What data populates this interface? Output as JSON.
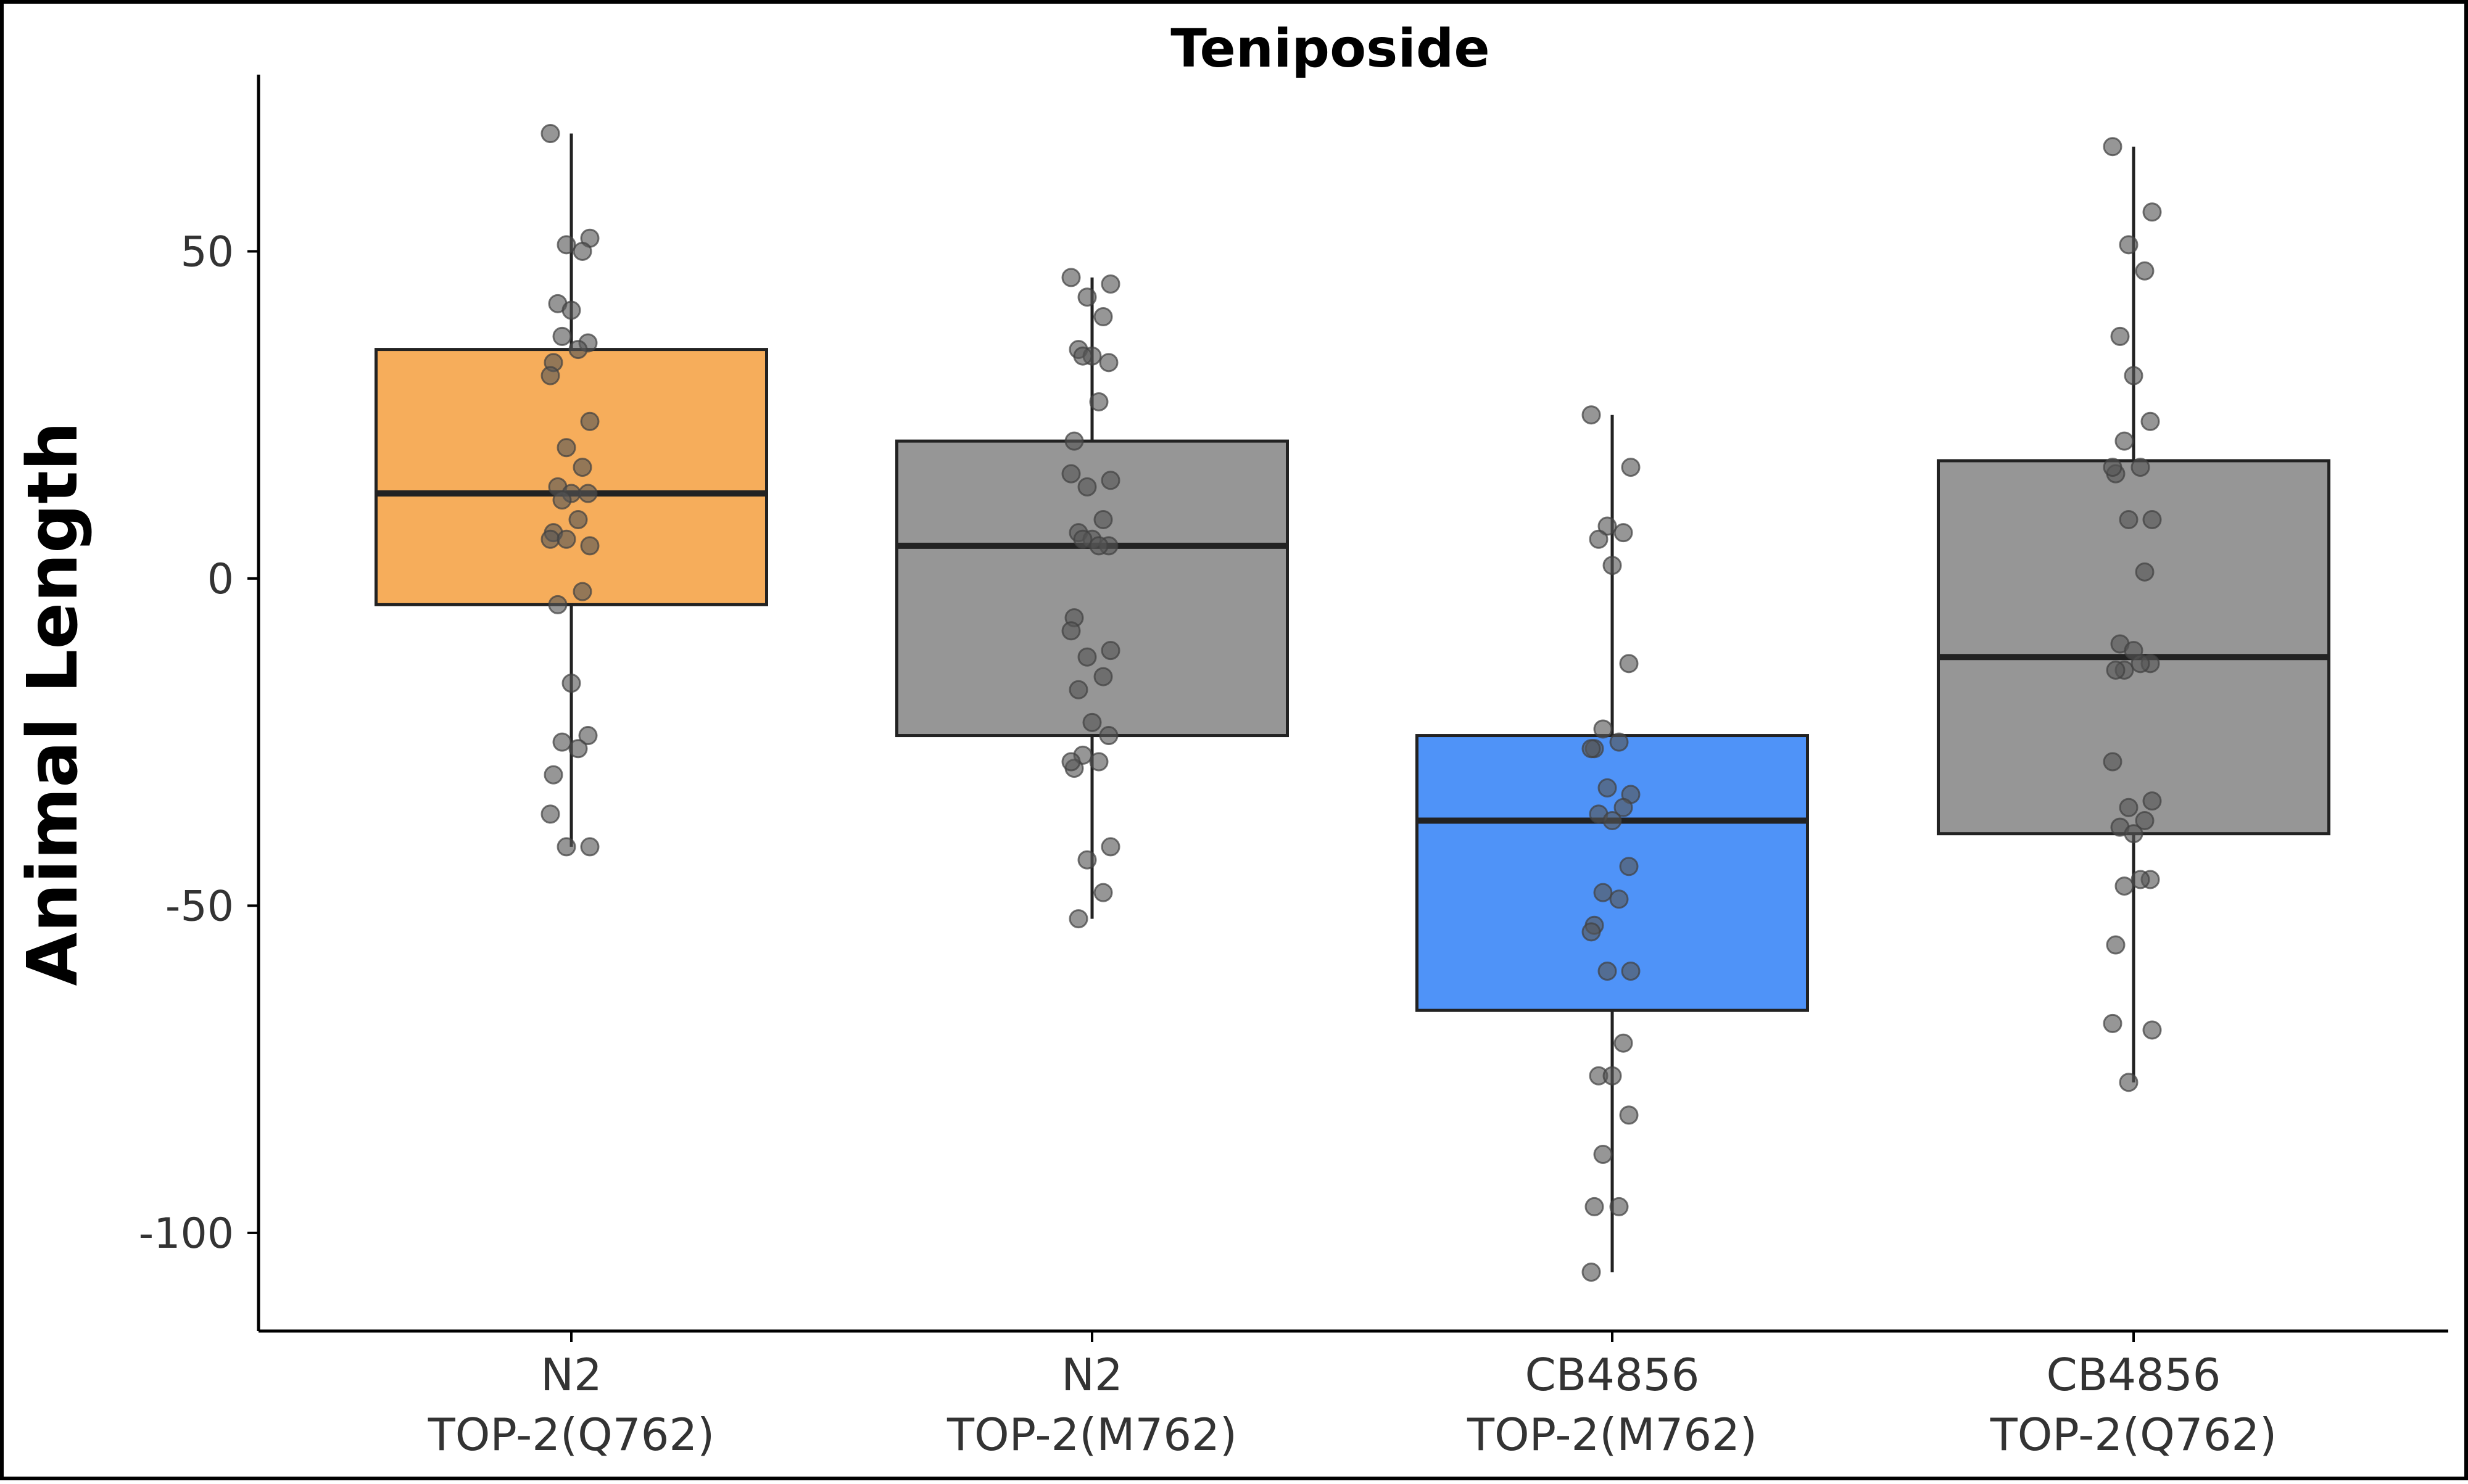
{
  "chart_data": {
    "type": "boxplot",
    "title": "Teniposide",
    "xlabel": "",
    "ylabel": "Animal Length",
    "ylim": [
      -115,
      77
    ],
    "yticks": [
      50,
      0,
      -50,
      -100
    ],
    "grid": false,
    "legend": "none",
    "categories": [
      {
        "line1": "N2",
        "line2": "TOP-2(Q762)"
      },
      {
        "line1": "N2",
        "line2": "TOP-2(M762)"
      },
      {
        "line1": "CB4856",
        "line2": "TOP-2(M762)"
      },
      {
        "line1": "CB4856",
        "line2": "TOP-2(Q762)"
      }
    ],
    "series": [
      {
        "name": "N2 TOP-2(Q762)",
        "color": "#f6ad5b",
        "stats": {
          "min": -41,
          "q1": -4,
          "median": 13,
          "q3": 35,
          "max": 68
        },
        "points": [
          68,
          52,
          51,
          50,
          42,
          41,
          36,
          37,
          35,
          33,
          31,
          24,
          20,
          17,
          14,
          13,
          13,
          12,
          9,
          7,
          6,
          5,
          6,
          -2,
          -4,
          -16,
          -24,
          -25,
          -26,
          -30,
          -36,
          -41,
          -41
        ]
      },
      {
        "name": "N2 TOP-2(M762)",
        "color": "#969696",
        "stats": {
          "min": -52,
          "q1": -24,
          "median": 5,
          "q3": 21,
          "max": 46
        },
        "points": [
          46,
          45,
          43,
          40,
          35,
          34,
          33,
          34,
          27,
          21,
          16,
          15,
          14,
          9,
          7,
          6,
          5,
          6,
          5,
          -6,
          -8,
          -11,
          -12,
          -15,
          -17,
          -22,
          -24,
          -27,
          -28,
          -29,
          -28,
          -41,
          -43,
          -48,
          -52
        ]
      },
      {
        "name": "CB4856 TOP-2(M762)",
        "color": "#4f93f8",
        "stats": {
          "min": -106,
          "q1": -66,
          "median": -37,
          "q3": -24,
          "max": 25
        },
        "points": [
          25,
          17,
          8,
          7,
          6,
          2,
          -13,
          -23,
          -25,
          -26,
          -26,
          -33,
          -32,
          -35,
          -36,
          -37,
          -44,
          -48,
          -49,
          -53,
          -54,
          -60,
          -60,
          -71,
          -76,
          -76,
          -82,
          -88,
          -96,
          -96,
          -106
        ]
      },
      {
        "name": "CB4856 TOP-2(Q762)",
        "color": "#969696",
        "stats": {
          "min": -77,
          "q1": -39,
          "median": -12,
          "q3": 18,
          "max": 66
        },
        "points": [
          66,
          56,
          51,
          47,
          37,
          31,
          24,
          21,
          17,
          16,
          17,
          9,
          9,
          1,
          -10,
          -11,
          -13,
          -14,
          -13,
          -14,
          -28,
          -34,
          -35,
          -37,
          -38,
          -39,
          -46,
          -47,
          -46,
          -56,
          -68,
          -69,
          -77
        ]
      }
    ]
  }
}
